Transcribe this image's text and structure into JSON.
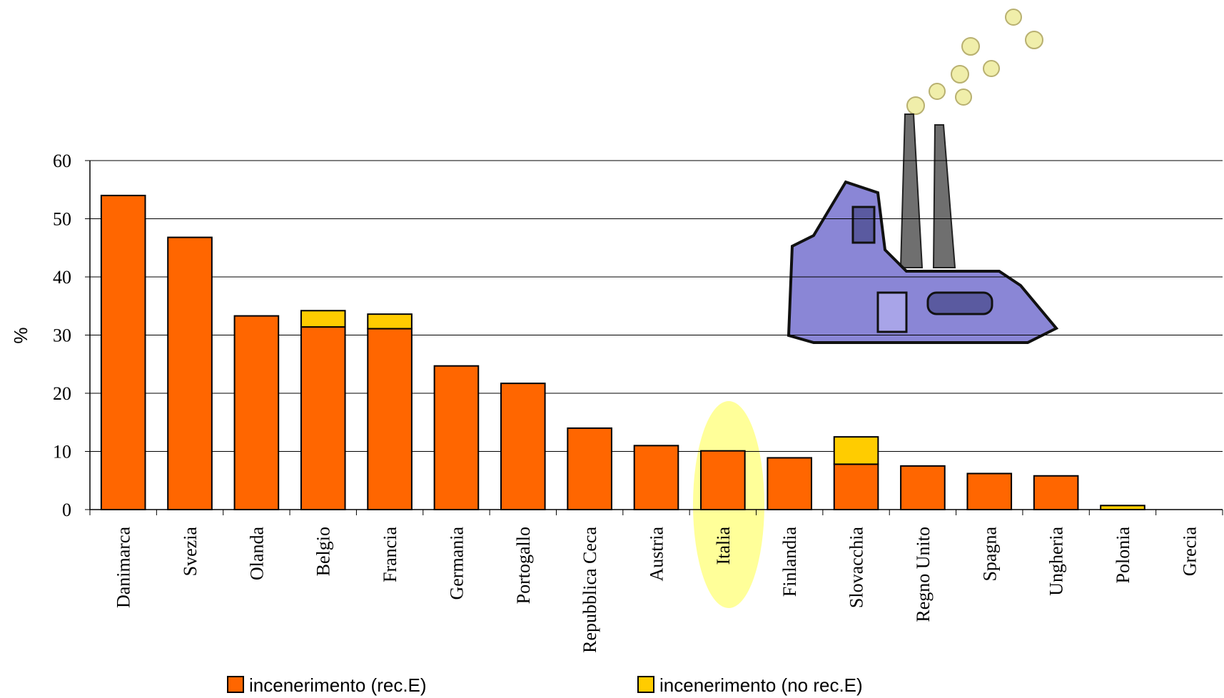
{
  "chart_data": {
    "type": "stacked_bar",
    "y_label": "%",
    "categories": [
      "Danimarca",
      "Svezia",
      "Olanda",
      "Belgio",
      "Francia",
      "Germania",
      "Portogallo",
      "Repubblica Ceca",
      "Austria",
      "Italia",
      "Finlandia",
      "Slovacchia",
      "Regno Unito",
      "Spagna",
      "Ungheria",
      "Polonia",
      "Grecia"
    ],
    "series": [
      {
        "name": "incenerimento (rec.E)",
        "color": "#ff6600",
        "values": [
          54.0,
          46.8,
          33.3,
          31.4,
          31.1,
          24.7,
          21.7,
          14.0,
          11.0,
          10.1,
          8.9,
          7.8,
          7.5,
          6.2,
          5.8,
          0,
          0
        ]
      },
      {
        "name": "incenerimento (no rec.E)",
        "color": "#ffcc00",
        "values": [
          0,
          0,
          0,
          2.8,
          2.5,
          0,
          0,
          0,
          0,
          0,
          0,
          4.7,
          0,
          0,
          0,
          0.7,
          0
        ]
      }
    ],
    "ylim": [
      0,
      60
    ],
    "yticks": [
      0,
      10,
      20,
      30,
      40,
      50,
      60
    ],
    "grid": true
  }
}
